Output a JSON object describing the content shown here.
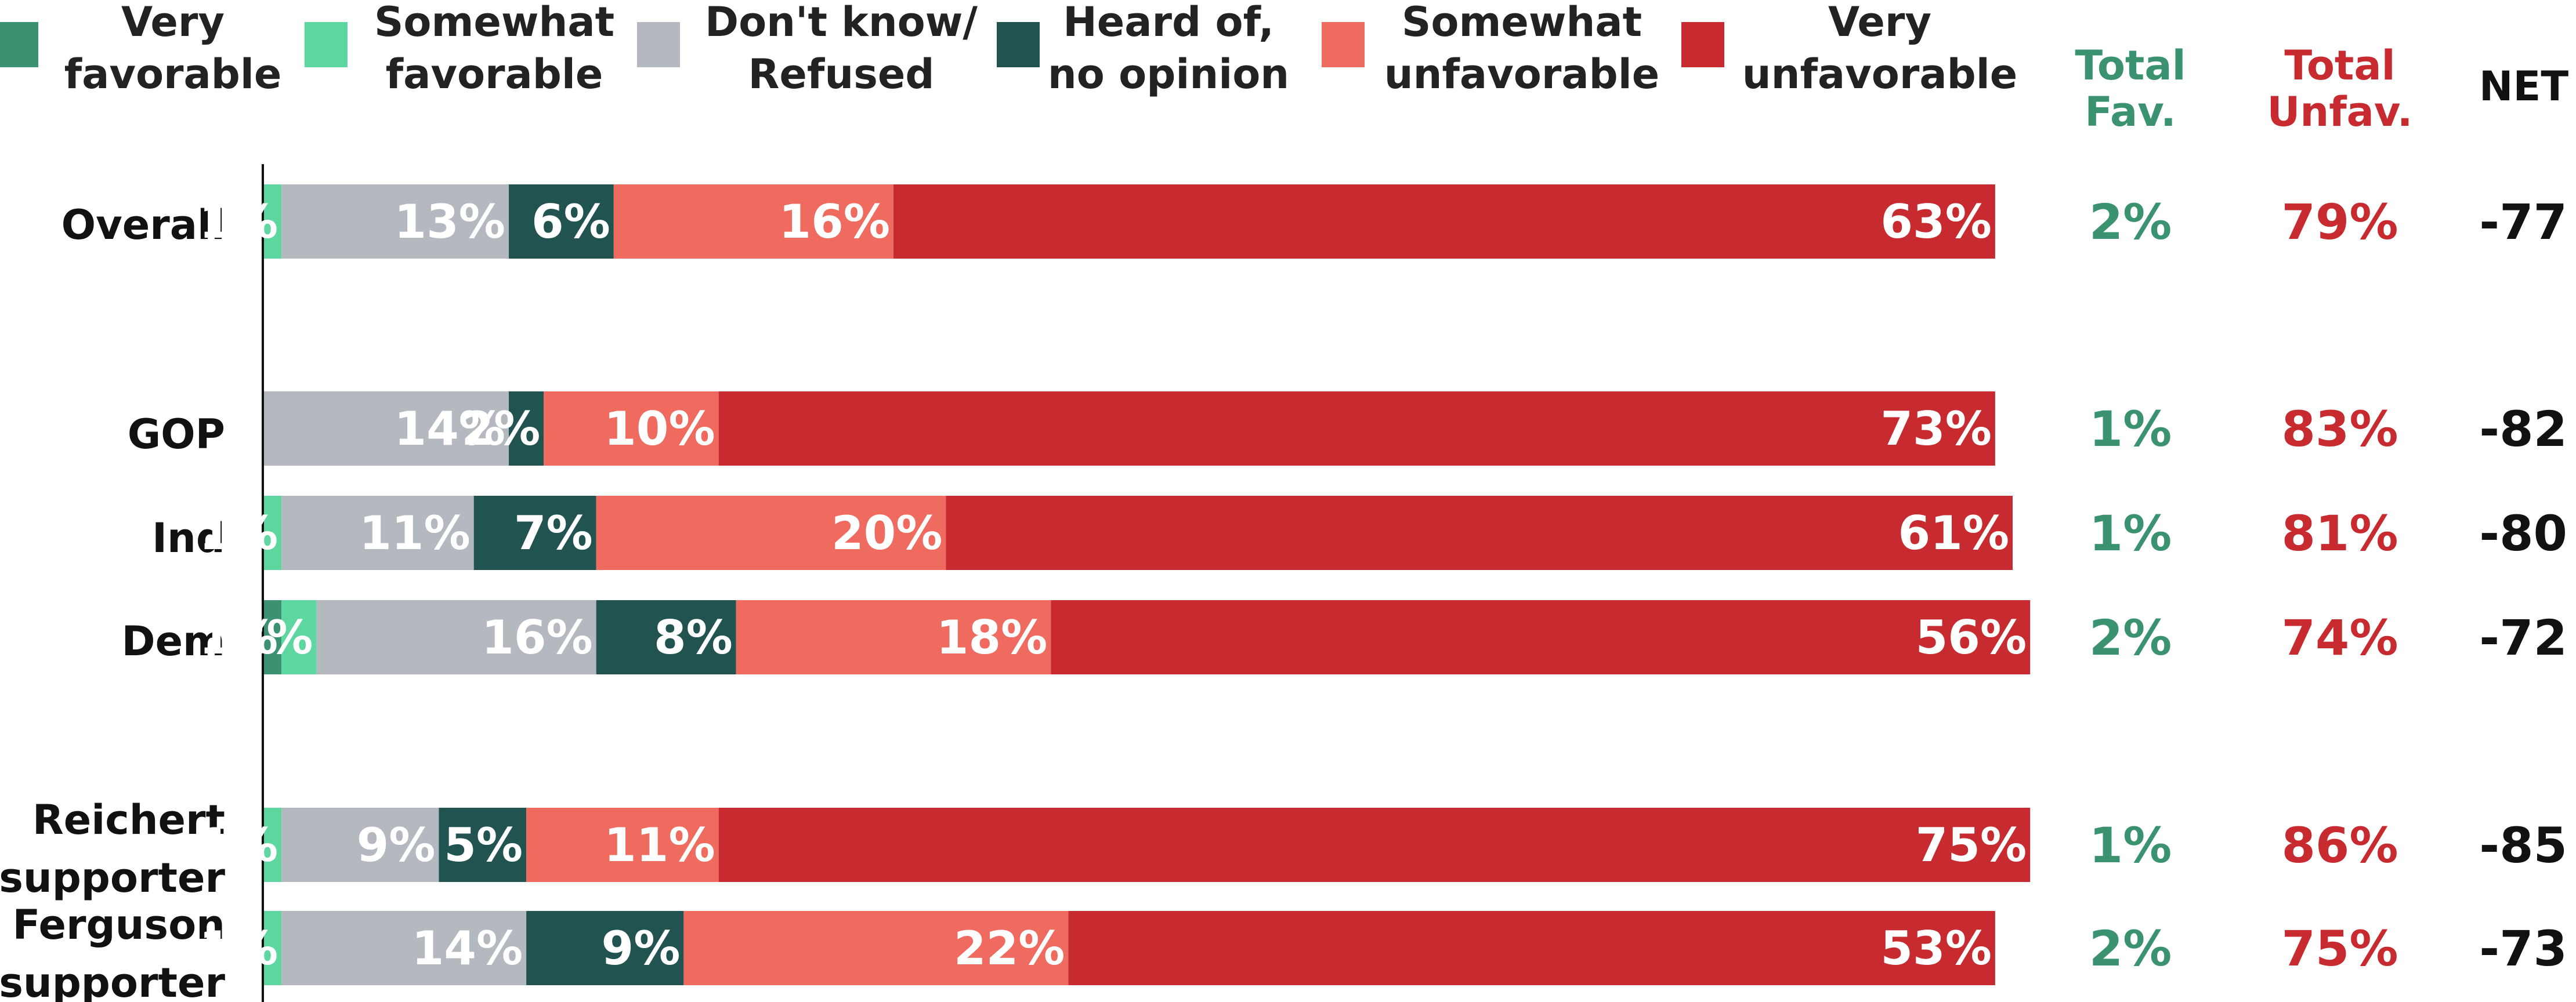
{
  "chart_data": {
    "type": "bar",
    "orientation": "horizontal",
    "stacked": true,
    "legend_position": "top",
    "xlim": [
      0,
      100
    ],
    "series": [
      {
        "key": "very_fav",
        "name_lines": [
          "Very",
          "favorable"
        ],
        "color": "#3a9270"
      },
      {
        "key": "some_fav",
        "name_lines": [
          "Somewhat",
          "favorable"
        ],
        "color": "#5ed6a0"
      },
      {
        "key": "dk",
        "name_lines": [
          "Don't know/",
          "Refused"
        ],
        "color": "#b4b8bf"
      },
      {
        "key": "heard",
        "name_lines": [
          "Heard of,",
          "no opinion"
        ],
        "color": "#215450"
      },
      {
        "key": "some_unfav",
        "name_lines": [
          "Somewhat",
          "unfavorable"
        ],
        "color": "#ef6b60"
      },
      {
        "key": "very_unfav",
        "name_lines": [
          "Very",
          "unfavorable"
        ],
        "color": "#c72a2f"
      }
    ],
    "columns": [
      {
        "key": "fav",
        "lines": [
          "Total",
          "Fav."
        ],
        "color": "#3a9270"
      },
      {
        "key": "unfav",
        "lines": [
          "Total",
          "Unfav."
        ],
        "color": "#c72a2f"
      },
      {
        "key": "net",
        "lines": [
          "NET"
        ],
        "color": "#111111"
      }
    ],
    "rows": [
      {
        "label_lines": [
          "Overall"
        ],
        "values": [
          0,
          1,
          13,
          6,
          16,
          63
        ],
        "labels": [
          "",
          "1%",
          "13%",
          "6%",
          "16%",
          "63%"
        ],
        "fav": "2%",
        "unfav": "79%",
        "net": "-77"
      },
      {
        "label_lines": [
          "GOP"
        ],
        "values": [
          0,
          0,
          14,
          2,
          10,
          73
        ],
        "labels": [
          "",
          "",
          "14%",
          "2%",
          "10%",
          "73%"
        ],
        "fav": "1%",
        "unfav": "83%",
        "net": "-82"
      },
      {
        "label_lines": [
          "Ind"
        ],
        "values": [
          0,
          1,
          11,
          7,
          20,
          61
        ],
        "labels": [
          "",
          "1%",
          "11%",
          "7%",
          "20%",
          "61%"
        ],
        "fav": "1%",
        "unfav": "81%",
        "net": "-80"
      },
      {
        "label_lines": [
          "Dem"
        ],
        "values": [
          1,
          2,
          16,
          8,
          18,
          56
        ],
        "labels": [
          "1%",
          "2%",
          "16%",
          "8%",
          "18%",
          "56%"
        ],
        "fav": "2%",
        "unfav": "74%",
        "net": "-72"
      },
      {
        "label_lines": [
          "Reichert",
          "supporter"
        ],
        "values": [
          0,
          1,
          9,
          5,
          11,
          75
        ],
        "labels": [
          "",
          "1%",
          "9%",
          "5%",
          "11%",
          "75%"
        ],
        "fav": "1%",
        "unfav": "86%",
        "net": "-85"
      },
      {
        "label_lines": [
          "Ferguson",
          "supporter"
        ],
        "values": [
          0,
          1,
          14,
          9,
          22,
          53
        ],
        "labels": [
          "",
          "1%",
          "14%",
          "9%",
          "22%",
          "53%"
        ],
        "fav": "2%",
        "unfav": "75%",
        "net": "-73"
      }
    ]
  }
}
